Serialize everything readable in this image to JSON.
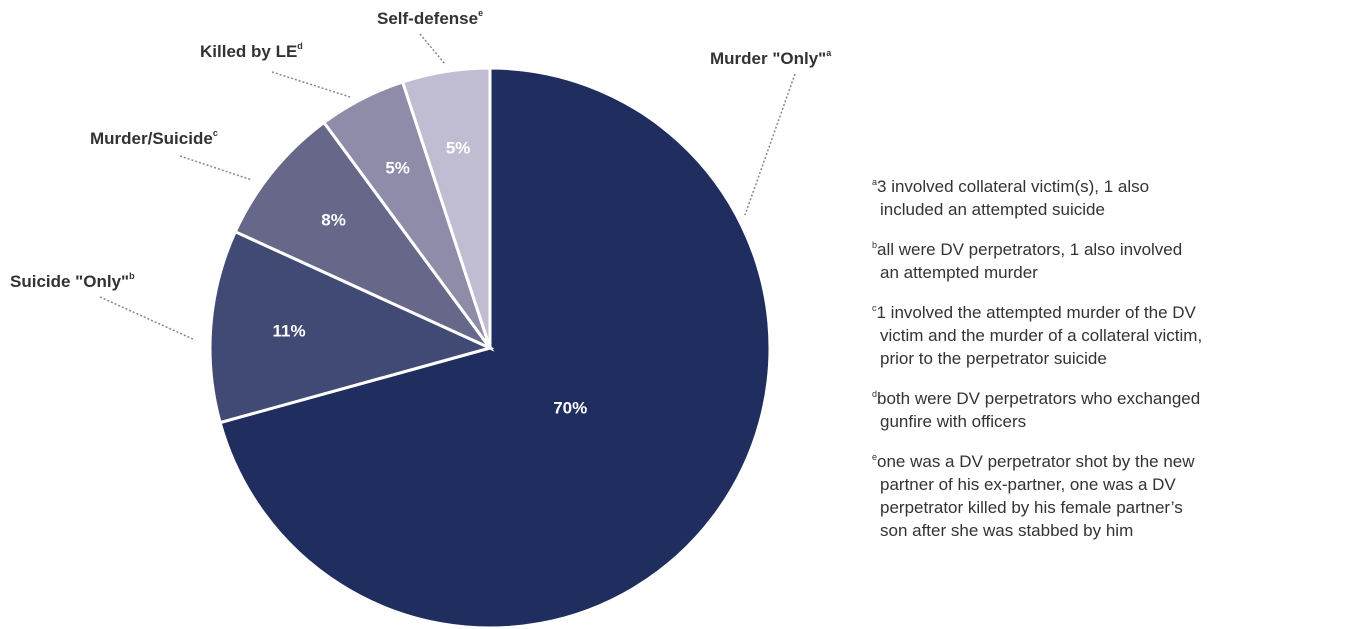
{
  "chart_data": {
    "type": "pie",
    "categories": [
      "Murder \"Only\"",
      "Suicide \"Only\"",
      "Murder/Suicide",
      "Killed by LE",
      "Self-defense"
    ],
    "label_notes": [
      "a",
      "b",
      "c",
      "d",
      "e"
    ],
    "values": [
      70,
      11,
      8,
      5,
      5
    ],
    "value_labels": [
      "70%",
      "11%",
      "8%",
      "5%",
      "5%"
    ],
    "colors": [
      "#1f2d5f",
      "#414a75",
      "#676889",
      "#8f8ca9",
      "#c0bdd2"
    ],
    "footnotes": [
      {
        "marker": "a",
        "lines": [
          "3 involved collateral victim(s), 1 also",
          "included an attempted suicide"
        ]
      },
      {
        "marker": "b",
        "lines": [
          "all were DV perpetrators, 1 also involved",
          "an attempted murder"
        ]
      },
      {
        "marker": "c",
        "lines": [
          "1 involved the attempted murder of the DV",
          "victim and the murder of a collateral victim,",
          "prior to the perpetrator suicide"
        ]
      },
      {
        "marker": "d",
        "lines": [
          "both were DV perpetrators who exchanged",
          "gunfire with officers"
        ]
      },
      {
        "marker": "e",
        "lines": [
          "one was a DV perpetrator shot by the new",
          "partner of his ex-partner, one was a DV",
          "perpetrator killed by his female partner’s",
          "son after she was stabbed by him"
        ]
      }
    ]
  }
}
